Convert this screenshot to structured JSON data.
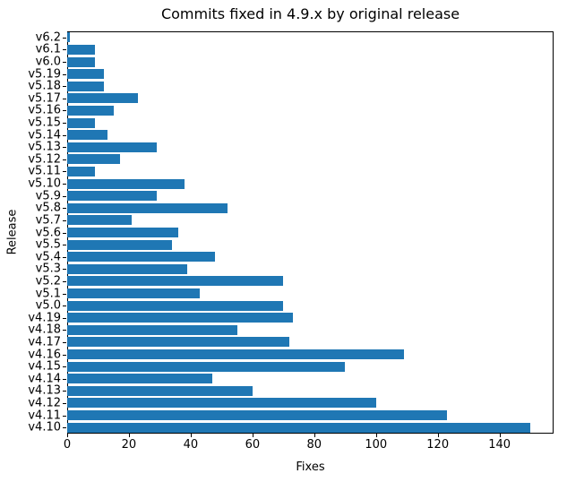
{
  "chart_data": {
    "type": "bar",
    "orientation": "horizontal",
    "title": "Commits fixed in 4.9.x by original release",
    "xlabel": "Fixes",
    "ylabel": "Release",
    "categories": [
      "v6.2",
      "v6.1",
      "v6.0",
      "v5.19",
      "v5.18",
      "v5.17",
      "v5.16",
      "v5.15",
      "v5.14",
      "v5.13",
      "v5.12",
      "v5.11",
      "v5.10",
      "v5.9",
      "v5.8",
      "v5.7",
      "v5.6",
      "v5.5",
      "v5.4",
      "v5.3",
      "v5.2",
      "v5.1",
      "v5.0",
      "v4.19",
      "v4.18",
      "v4.17",
      "v4.16",
      "v4.15",
      "v4.14",
      "v4.13",
      "v4.12",
      "v4.11",
      "v4.10"
    ],
    "values": [
      1,
      9,
      9,
      12,
      12,
      23,
      15,
      9,
      13,
      29,
      17,
      9,
      38,
      29,
      52,
      21,
      36,
      34,
      48,
      39,
      70,
      43,
      70,
      73,
      55,
      72,
      109,
      90,
      47,
      60,
      100,
      123,
      150
    ],
    "xlim": [
      0,
      157.5
    ],
    "xticks": [
      0,
      20,
      40,
      60,
      80,
      100,
      120,
      140
    ],
    "bar_color": "#1f77b4",
    "grid": false,
    "legend": "none",
    "spine_color": "#000000",
    "text_color": "#000000",
    "background_color": "#ffffff"
  }
}
